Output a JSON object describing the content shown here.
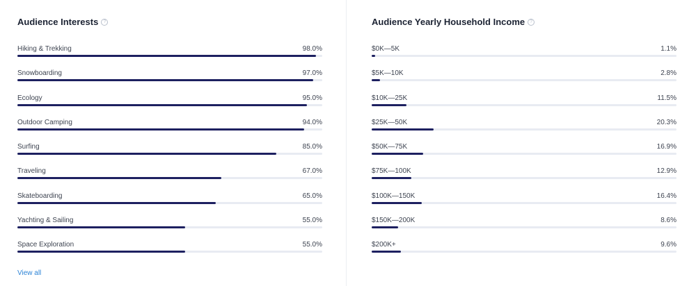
{
  "interests": {
    "title": "Audience Interests",
    "help_icon": "question-circle-icon",
    "bar_color": "#1d2060",
    "track_color": "#e8ebf2",
    "items": [
      {
        "label": "Hiking & Trekking",
        "value": "98.0%",
        "pct": 98.0
      },
      {
        "label": "Snowboarding",
        "value": "97.0%",
        "pct": 97.0
      },
      {
        "label": "Ecology",
        "value": "95.0%",
        "pct": 95.0
      },
      {
        "label": "Outdoor Camping",
        "value": "94.0%",
        "pct": 94.0
      },
      {
        "label": "Surfing",
        "value": "85.0%",
        "pct": 85.0
      },
      {
        "label": "Traveling",
        "value": "67.0%",
        "pct": 67.0
      },
      {
        "label": "Skateboarding",
        "value": "65.0%",
        "pct": 65.0
      },
      {
        "label": "Yachting & Sailing",
        "value": "55.0%",
        "pct": 55.0
      },
      {
        "label": "Space Exploration",
        "value": "55.0%",
        "pct": 55.0
      }
    ],
    "view_all_label": "View all",
    "view_all_color": "#2b83d6"
  },
  "income": {
    "title": "Audience Yearly Household Income",
    "help_icon": "question-circle-icon",
    "bar_color": "#1d2060",
    "track_color": "#e8ebf2",
    "items": [
      {
        "label": "$0K—5K",
        "value": "1.1%",
        "pct": 1.1
      },
      {
        "label": "$5K—10K",
        "value": "2.8%",
        "pct": 2.8
      },
      {
        "label": "$10K—25K",
        "value": "11.5%",
        "pct": 11.5
      },
      {
        "label": "$25K—50K",
        "value": "20.3%",
        "pct": 20.3
      },
      {
        "label": "$50K—75K",
        "value": "16.9%",
        "pct": 16.9
      },
      {
        "label": "$75K—100K",
        "value": "12.9%",
        "pct": 12.9
      },
      {
        "label": "$100K—150K",
        "value": "16.4%",
        "pct": 16.4
      },
      {
        "label": "$150K—200K",
        "value": "8.6%",
        "pct": 8.6
      },
      {
        "label": "$200K+",
        "value": "9.6%",
        "pct": 9.6
      }
    ]
  }
}
